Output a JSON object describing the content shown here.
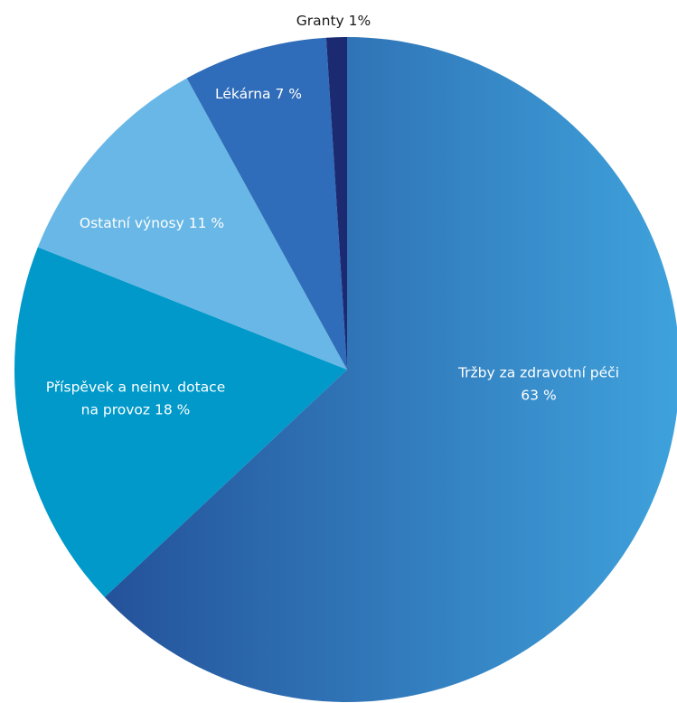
{
  "chart_data": {
    "type": "pie",
    "title": "",
    "start": "top",
    "direction": "clockwise",
    "slices": [
      {
        "lines": [
          "Tržby za zdravotní péči",
          "63 %"
        ],
        "value": 63,
        "color": "#2f7cc0",
        "gradient": [
          "#24529a",
          "#3fa2dc"
        ],
        "label_color": "#ffffff",
        "label_outside": false
      },
      {
        "lines": [
          "Příspěvek a neinv. dotace",
          "na provoz 18 %"
        ],
        "value": 18,
        "color": "#0099c9",
        "label_color": "#ffffff",
        "label_outside": false
      },
      {
        "lines": [
          "Ostatní výnosy 11 %"
        ],
        "value": 11,
        "color": "#68b7e6",
        "label_color": "#ffffff",
        "label_outside": false
      },
      {
        "lines": [
          "Lékárna 7 %"
        ],
        "value": 7,
        "color": "#2f6cb9",
        "label_color": "#ffffff",
        "label_outside": false
      },
      {
        "lines": [
          "Granty 1%"
        ],
        "value": 1,
        "color": "#1c2a72",
        "label_color": "#1a1a1a",
        "label_outside": true
      }
    ]
  }
}
